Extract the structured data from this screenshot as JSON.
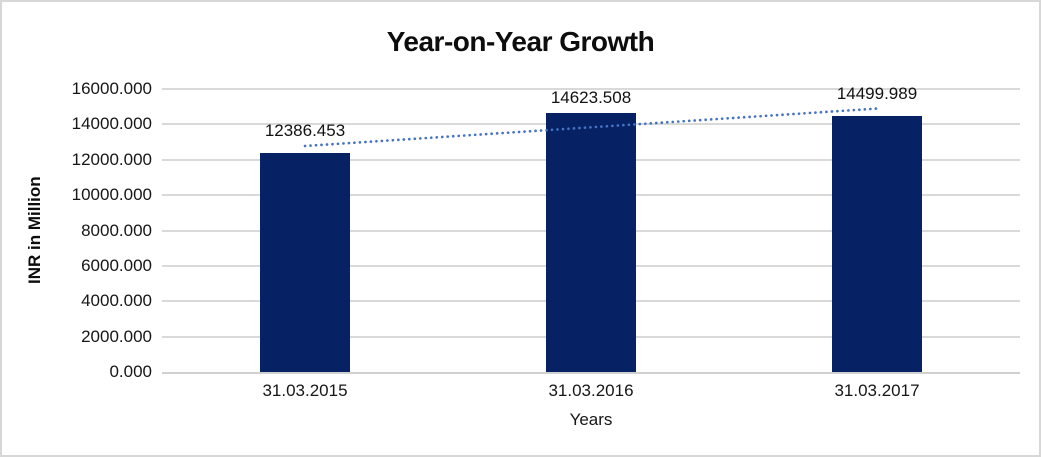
{
  "chart_data": {
    "type": "bar",
    "title": "Year-on-Year Growth",
    "xlabel": "Years",
    "ylabel": "INR in Million",
    "categories": [
      "31.03.2015",
      "31.03.2016",
      "31.03.2017"
    ],
    "values": [
      12386.453,
      14623.508,
      14499.989
    ],
    "data_labels": [
      "12386.453",
      "14623.508",
      "14499.989"
    ],
    "ylim": [
      0,
      16000
    ],
    "ytick_step": 2000,
    "ytick_labels": [
      "0.000",
      "2000.000",
      "4000.000",
      "6000.000",
      "8000.000",
      "10000.000",
      "12000.000",
      "14000.000",
      "16000.000"
    ],
    "grid": "horizontal",
    "legend": "none",
    "trendline": {
      "type": "linear",
      "style": "dotted",
      "color": "#4472C4"
    },
    "colors": {
      "bar": "#062264",
      "gridline": "#D9D9D9",
      "axis_line": "#D0D0D0",
      "trendline": "#4472C4",
      "text": "#161616",
      "background": "#FFFFFF",
      "border": "#D7D7D7"
    }
  }
}
